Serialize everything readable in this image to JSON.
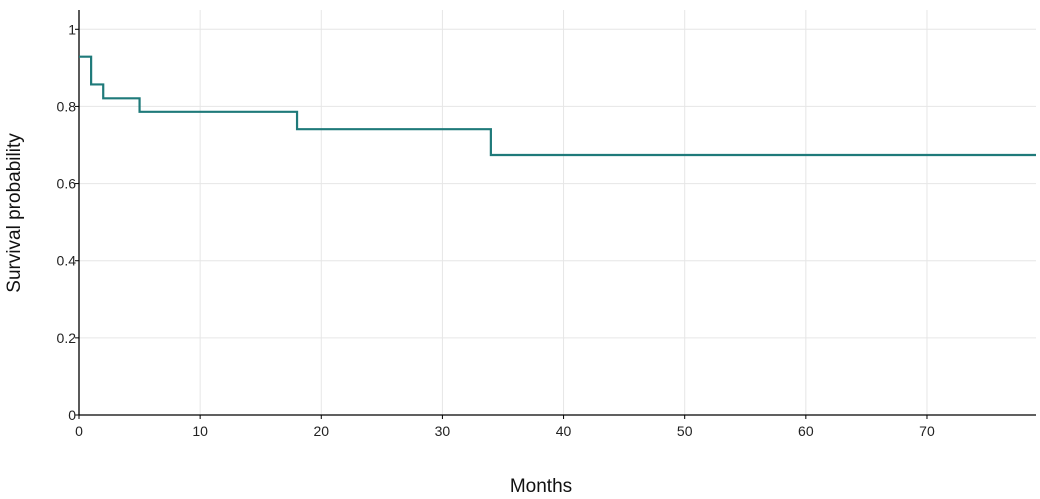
{
  "chart_data": {
    "type": "line",
    "subtype": "step",
    "title": "",
    "xlabel": "Months",
    "ylabel": "Survival probability",
    "xlim": [
      0,
      79
    ],
    "ylim": [
      0,
      1.05
    ],
    "x_ticks": [
      0,
      10,
      20,
      30,
      40,
      50,
      60,
      70
    ],
    "y_ticks": [
      0,
      0.2,
      0.4,
      0.6,
      0.8,
      1
    ],
    "x_tick_labels": [
      "0",
      "10",
      "20",
      "30",
      "40",
      "50",
      "60",
      "70"
    ],
    "y_tick_labels": [
      "0",
      "0.2",
      "0.4",
      "0.6",
      "0.8",
      "1"
    ],
    "grid": true,
    "legend": "none",
    "series": [
      {
        "color": "#1f7a7a",
        "x": [
          0,
          1,
          2,
          5,
          18,
          34,
          79
        ],
        "y": [
          0.929,
          0.857,
          0.821,
          0.786,
          0.741,
          0.674,
          0.674
        ]
      }
    ]
  }
}
